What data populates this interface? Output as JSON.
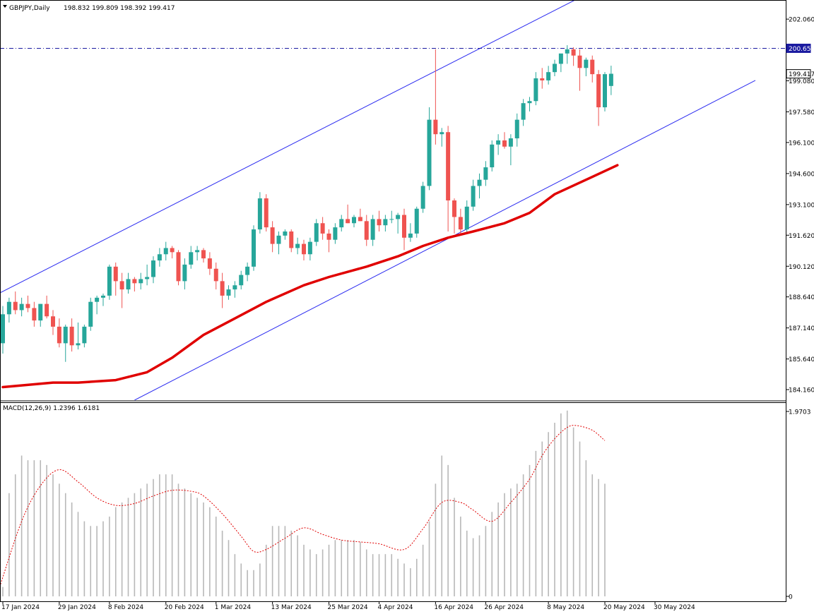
{
  "symbol_label": "GBPJPY,Daily",
  "ohlc_readout": "198.832 199.809 198.392 199.417",
  "macd_label": "MACD(12,26,9) 1.2396 1.6181",
  "colors": {
    "bull": "#26a69a",
    "bear": "#ef5350",
    "ma": "#e00000",
    "channel": "#2a2af0",
    "level_line": "#1a1aa0",
    "price_tag_bg": "#1a1aa0",
    "histogram": "#b8b8b8",
    "signal": "#e00000"
  },
  "chart_data": [
    {
      "type": "candlestick",
      "symbol": "GBPJPY",
      "timeframe": "Daily",
      "y_axis_ticks": [
        "202.060",
        "199.080",
        "197.580",
        "196.100",
        "194.600",
        "193.100",
        "191.620",
        "190.120",
        "188.640",
        "187.140",
        "185.640",
        "184.160"
      ],
      "ylim": [
        183.65,
        202.95
      ],
      "x_axis_ticks": [
        "17 Jan 2024",
        "29 Jan 2024",
        "8 Feb 2024",
        "20 Feb 2024",
        "1 Mar 2024",
        "13 Mar 2024",
        "25 Mar 2024",
        "4 Apr 2024",
        "16 Apr 2024",
        "26 Apr 2024",
        "8 May 2024",
        "20 May 2024",
        "30 May 2024"
      ],
      "x_tick_bar_index": [
        0,
        9,
        17,
        26,
        34,
        43,
        52,
        60,
        69,
        77,
        87,
        96,
        104
      ],
      "level_line": {
        "value": 200.65,
        "label": "200.650"
      },
      "last_price": {
        "value": 199.417,
        "label": "199.417"
      },
      "ohlc": [
        [
          186.4,
          188.2,
          185.9,
          187.8
        ],
        [
          187.8,
          188.6,
          187.4,
          188.4
        ],
        [
          188.4,
          188.9,
          187.8,
          188.0
        ],
        [
          188.0,
          188.6,
          187.7,
          188.3
        ],
        [
          188.3,
          188.7,
          187.9,
          188.1
        ],
        [
          188.1,
          188.4,
          187.2,
          187.5
        ],
        [
          187.5,
          188.3,
          187.2,
          188.3
        ],
        [
          188.3,
          188.7,
          187.6,
          187.7
        ],
        [
          187.7,
          188.0,
          186.8,
          187.2
        ],
        [
          187.2,
          187.6,
          186.2,
          186.4
        ],
        [
          186.4,
          187.3,
          185.5,
          187.2
        ],
        [
          187.2,
          187.6,
          186.0,
          186.3
        ],
        [
          186.3,
          187.4,
          186.1,
          186.4
        ],
        [
          186.4,
          187.3,
          186.2,
          187.2
        ],
        [
          187.2,
          188.6,
          187.0,
          188.4
        ],
        [
          188.4,
          188.7,
          187.8,
          188.6
        ],
        [
          188.6,
          188.8,
          188.2,
          188.7
        ],
        [
          188.7,
          190.2,
          188.5,
          190.1
        ],
        [
          190.1,
          190.3,
          188.7,
          189.4
        ],
        [
          189.4,
          189.8,
          188.1,
          189.0
        ],
        [
          189.0,
          189.8,
          188.8,
          189.5
        ],
        [
          189.5,
          189.6,
          188.9,
          189.3
        ],
        [
          189.3,
          189.8,
          189.0,
          189.5
        ],
        [
          189.5,
          190.2,
          189.2,
          189.6
        ],
        [
          189.6,
          190.6,
          189.3,
          190.4
        ],
        [
          190.4,
          191.0,
          190.1,
          190.7
        ],
        [
          190.7,
          191.3,
          190.4,
          191.0
        ],
        [
          191.0,
          191.1,
          190.5,
          190.8
        ],
        [
          190.8,
          190.9,
          189.2,
          189.4
        ],
        [
          189.4,
          190.5,
          189.0,
          190.2
        ],
        [
          190.2,
          191.1,
          190.0,
          190.8
        ],
        [
          190.8,
          191.1,
          190.4,
          190.9
        ],
        [
          190.9,
          191.0,
          190.3,
          190.5
        ],
        [
          190.5,
          190.8,
          189.7,
          190.0
        ],
        [
          190.0,
          190.3,
          189.0,
          189.4
        ],
        [
          189.4,
          189.8,
          188.1,
          188.7
        ],
        [
          188.7,
          189.2,
          188.5,
          189.0
        ],
        [
          189.0,
          189.4,
          188.6,
          189.2
        ],
        [
          189.2,
          189.9,
          189.0,
          189.7
        ],
        [
          189.7,
          190.3,
          189.4,
          190.1
        ],
        [
          190.1,
          192.1,
          189.9,
          191.9
        ],
        [
          191.9,
          193.7,
          191.7,
          193.4
        ],
        [
          193.4,
          193.6,
          191.8,
          192.0
        ],
        [
          192.0,
          192.3,
          190.8,
          191.2
        ],
        [
          191.2,
          191.8,
          190.7,
          191.6
        ],
        [
          191.6,
          191.9,
          191.4,
          191.8
        ],
        [
          191.8,
          191.9,
          190.8,
          191.0
        ],
        [
          191.0,
          191.5,
          190.7,
          191.2
        ],
        [
          191.2,
          191.4,
          190.4,
          190.7
        ],
        [
          190.7,
          191.5,
          190.4,
          191.3
        ],
        [
          191.3,
          192.4,
          191.1,
          192.2
        ],
        [
          192.2,
          192.5,
          191.4,
          191.7
        ],
        [
          191.7,
          191.9,
          190.8,
          191.4
        ],
        [
          191.4,
          192.2,
          191.2,
          192.0
        ],
        [
          192.0,
          192.6,
          191.8,
          192.4
        ],
        [
          192.4,
          193.1,
          192.2,
          192.2
        ],
        [
          192.2,
          192.6,
          192.0,
          192.5
        ],
        [
          192.5,
          192.9,
          192.3,
          192.3
        ],
        [
          192.3,
          192.6,
          191.1,
          191.4
        ],
        [
          191.4,
          192.6,
          191.1,
          192.4
        ],
        [
          192.4,
          192.8,
          191.8,
          192.1
        ],
        [
          192.1,
          192.6,
          191.8,
          192.4
        ],
        [
          192.4,
          192.8,
          192.2,
          192.4
        ],
        [
          192.4,
          192.7,
          191.7,
          192.6
        ],
        [
          192.6,
          192.9,
          190.9,
          191.5
        ],
        [
          191.5,
          192.2,
          191.3,
          191.7
        ],
        [
          191.7,
          193.0,
          191.5,
          192.9
        ],
        [
          192.9,
          194.2,
          192.7,
          194.0
        ],
        [
          194.0,
          197.8,
          193.8,
          197.2
        ],
        [
          197.2,
          200.6,
          196.0,
          196.5
        ],
        [
          196.5,
          196.8,
          195.9,
          196.6
        ],
        [
          196.6,
          196.9,
          191.8,
          193.3
        ],
        [
          193.3,
          193.4,
          191.7,
          192.5
        ],
        [
          192.5,
          192.9,
          191.7,
          191.9
        ],
        [
          191.9,
          193.3,
          191.7,
          193.0
        ],
        [
          193.0,
          194.3,
          192.8,
          194.0
        ],
        [
          194.0,
          194.6,
          193.4,
          194.3
        ],
        [
          194.3,
          195.2,
          194.0,
          194.9
        ],
        [
          194.9,
          196.2,
          194.7,
          196.0
        ],
        [
          196.0,
          196.5,
          195.5,
          196.2
        ],
        [
          196.2,
          196.6,
          195.8,
          195.9
        ],
        [
          195.9,
          196.5,
          195.0,
          196.3
        ],
        [
          196.3,
          197.5,
          195.9,
          197.2
        ],
        [
          197.2,
          198.2,
          196.9,
          198.0
        ],
        [
          198.0,
          198.3,
          197.6,
          198.1
        ],
        [
          198.1,
          199.5,
          197.9,
          199.2
        ],
        [
          199.2,
          199.7,
          198.7,
          199.1
        ],
        [
          199.1,
          199.8,
          198.9,
          199.5
        ],
        [
          199.5,
          200.1,
          199.3,
          199.9
        ],
        [
          199.9,
          200.3,
          199.5,
          200.4
        ],
        [
          200.4,
          200.8,
          199.9,
          200.6
        ],
        [
          200.6,
          200.7,
          199.8,
          200.3
        ],
        [
          200.3,
          200.6,
          198.6,
          199.7
        ],
        [
          199.7,
          200.2,
          199.3,
          200.1
        ],
        [
          200.1,
          200.3,
          199.0,
          199.4
        ],
        [
          199.4,
          199.6,
          196.9,
          197.8
        ],
        [
          197.8,
          199.5,
          197.6,
          199.4
        ],
        [
          198.83,
          199.81,
          198.39,
          199.42
        ]
      ],
      "ma_series": [
        [
          0,
          184.28
        ],
        [
          8,
          184.5
        ],
        [
          12,
          184.5
        ],
        [
          18,
          184.62
        ],
        [
          23,
          185.0
        ],
        [
          27,
          185.7
        ],
        [
          32,
          186.8
        ],
        [
          37,
          187.6
        ],
        [
          42,
          188.4
        ],
        [
          48,
          189.2
        ],
        [
          52,
          189.6
        ],
        [
          58,
          190.1
        ],
        [
          63,
          190.6
        ],
        [
          67,
          191.1
        ],
        [
          71,
          191.5
        ],
        [
          75,
          191.8
        ],
        [
          80,
          192.2
        ],
        [
          84,
          192.7
        ],
        [
          88,
          193.6
        ],
        [
          93,
          194.3
        ],
        [
          98,
          195.0
        ]
      ],
      "channel_upper": [
        [
          -1,
          188.75
        ],
        [
          92,
          203.1
        ]
      ],
      "channel_lower": [
        [
          21,
          183.65
        ],
        [
          120,
          199.1
        ]
      ],
      "macd": {
        "y_axis_ticks": [
          "1.9703",
          "0"
        ],
        "ylim": [
          0,
          1.9703
        ],
        "histogram": [
          0.1,
          1.1,
          1.3,
          1.5,
          1.45,
          1.45,
          1.45,
          1.4,
          1.3,
          1.2,
          1.1,
          1.0,
          0.9,
          0.8,
          0.75,
          0.75,
          0.8,
          0.85,
          0.95,
          1.0,
          1.05,
          1.1,
          1.15,
          1.2,
          1.25,
          1.3,
          1.3,
          1.3,
          1.2,
          1.15,
          1.1,
          1.05,
          1.0,
          0.95,
          0.85,
          0.7,
          0.6,
          0.45,
          0.35,
          0.28,
          0.28,
          0.35,
          0.55,
          0.75,
          0.75,
          0.75,
          0.7,
          0.65,
          0.55,
          0.5,
          0.45,
          0.5,
          0.55,
          0.6,
          0.6,
          0.6,
          0.6,
          0.58,
          0.5,
          0.45,
          0.45,
          0.45,
          0.45,
          0.4,
          0.35,
          0.3,
          0.4,
          0.55,
          0.8,
          1.2,
          1.5,
          1.4,
          1.05,
          0.85,
          0.7,
          0.62,
          0.65,
          0.75,
          0.9,
          1.0,
          1.1,
          1.15,
          1.2,
          1.3,
          1.4,
          1.55,
          1.65,
          1.75,
          1.85,
          1.95,
          1.98,
          1.8,
          1.65,
          1.45,
          1.3,
          1.25,
          1.2
        ],
        "signal": [
          [
            -0.5,
            0.1
          ],
          [
            3,
            0.8
          ],
          [
            6,
            1.18
          ],
          [
            9,
            1.35
          ],
          [
            12,
            1.22
          ],
          [
            15,
            1.05
          ],
          [
            18,
            0.97
          ],
          [
            21,
            0.99
          ],
          [
            24,
            1.07
          ],
          [
            27,
            1.13
          ],
          [
            30,
            1.12
          ],
          [
            32,
            1.07
          ],
          [
            35,
            0.88
          ],
          [
            38,
            0.64
          ],
          [
            40,
            0.48
          ],
          [
            42,
            0.5
          ],
          [
            45,
            0.62
          ],
          [
            48,
            0.73
          ],
          [
            51,
            0.66
          ],
          [
            54,
            0.6
          ],
          [
            57,
            0.58
          ],
          [
            60,
            0.56
          ],
          [
            64,
            0.5
          ],
          [
            67,
            0.72
          ],
          [
            70,
            1.0
          ],
          [
            73,
            1.0
          ],
          [
            75,
            0.92
          ],
          [
            78,
            0.8
          ],
          [
            81,
            1.0
          ],
          [
            84,
            1.25
          ],
          [
            86,
            1.5
          ],
          [
            88,
            1.68
          ],
          [
            90,
            1.8
          ],
          [
            91.5,
            1.82
          ],
          [
            94,
            1.77
          ],
          [
            96,
            1.66
          ]
        ]
      }
    }
  ]
}
